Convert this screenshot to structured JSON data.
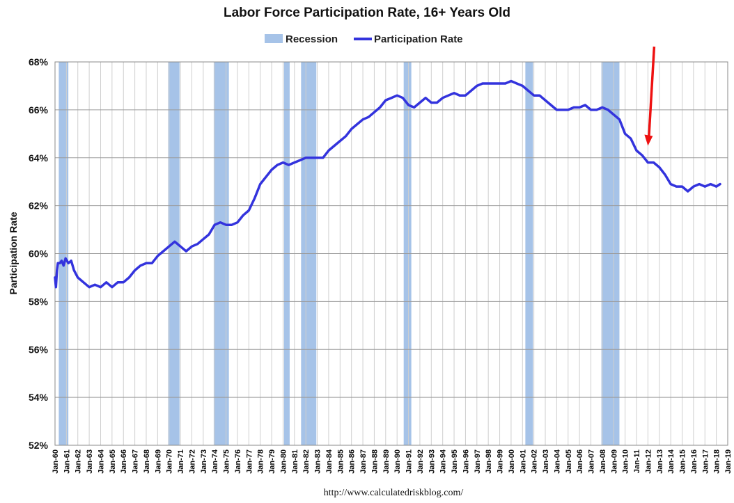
{
  "chart_data": {
    "type": "line",
    "title": "Labor Force Participation Rate, 16+ Years Old",
    "ylabel": "Participation Rate",
    "xlabel": "",
    "source": "http://www.calculatedriskblog.com/",
    "ylim": [
      52,
      68
    ],
    "xlim": [
      1960.0,
      2019.0
    ],
    "grid": true,
    "legend_position": "top-center",
    "y_ticks": [
      "52%",
      "54%",
      "56%",
      "58%",
      "60%",
      "62%",
      "64%",
      "66%",
      "68%"
    ],
    "y_tick_values": [
      52,
      54,
      56,
      58,
      60,
      62,
      64,
      66,
      68
    ],
    "x_ticks": [
      "Jan-60",
      "Jan-61",
      "Jan-62",
      "Jan-63",
      "Jan-64",
      "Jan-65",
      "Jan-66",
      "Jan-67",
      "Jan-68",
      "Jan-69",
      "Jan-70",
      "Jan-71",
      "Jan-72",
      "Jan-73",
      "Jan-74",
      "Jan-75",
      "Jan-76",
      "Jan-77",
      "Jan-78",
      "Jan-79",
      "Jan-80",
      "Jan-81",
      "Jan-82",
      "Jan-83",
      "Jan-84",
      "Jan-85",
      "Jan-86",
      "Jan-87",
      "Jan-88",
      "Jan-89",
      "Jan-90",
      "Jan-91",
      "Jan-92",
      "Jan-93",
      "Jan-94",
      "Jan-95",
      "Jan-96",
      "Jan-97",
      "Jan-98",
      "Jan-99",
      "Jan-00",
      "Jan-01",
      "Jan-02",
      "Jan-03",
      "Jan-04",
      "Jan-05",
      "Jan-06",
      "Jan-07",
      "Jan-08",
      "Jan-09",
      "Jan-10",
      "Jan-11",
      "Jan-12",
      "Jan-13",
      "Jan-14",
      "Jan-15",
      "Jan-16",
      "Jan-17",
      "Jan-18",
      "Jan-19"
    ],
    "x_tick_values": [
      1960,
      1961,
      1962,
      1963,
      1964,
      1965,
      1966,
      1967,
      1968,
      1969,
      1970,
      1971,
      1972,
      1973,
      1974,
      1975,
      1976,
      1977,
      1978,
      1979,
      1980,
      1981,
      1982,
      1983,
      1984,
      1985,
      1986,
      1987,
      1988,
      1989,
      1990,
      1991,
      1992,
      1993,
      1994,
      1995,
      1996,
      1997,
      1998,
      1999,
      2000,
      2001,
      2002,
      2003,
      2004,
      2005,
      2006,
      2007,
      2008,
      2009,
      2010,
      2011,
      2012,
      2013,
      2014,
      2015,
      2016,
      2017,
      2018,
      2019
    ],
    "recessions": [
      {
        "start": 1960.33,
        "end": 1961.17
      },
      {
        "start": 1969.92,
        "end": 1970.92
      },
      {
        "start": 1973.92,
        "end": 1975.25
      },
      {
        "start": 1980.08,
        "end": 1980.58
      },
      {
        "start": 1981.58,
        "end": 1982.92
      },
      {
        "start": 1990.58,
        "end": 1991.25
      },
      {
        "start": 2001.25,
        "end": 2001.92
      },
      {
        "start": 2007.92,
        "end": 2009.5
      }
    ],
    "series": [
      {
        "name": "Participation Rate",
        "color": "#3333dd",
        "points": [
          [
            1960.0,
            59.0
          ],
          [
            1960.08,
            58.6
          ],
          [
            1960.17,
            59.3
          ],
          [
            1960.25,
            59.6
          ],
          [
            1960.42,
            59.6
          ],
          [
            1960.58,
            59.7
          ],
          [
            1960.75,
            59.5
          ],
          [
            1960.92,
            59.8
          ],
          [
            1961.17,
            59.6
          ],
          [
            1961.42,
            59.7
          ],
          [
            1961.67,
            59.3
          ],
          [
            1962.0,
            59.0
          ],
          [
            1962.5,
            58.8
          ],
          [
            1963.0,
            58.6
          ],
          [
            1963.5,
            58.7
          ],
          [
            1964.0,
            58.6
          ],
          [
            1964.5,
            58.8
          ],
          [
            1965.0,
            58.6
          ],
          [
            1965.5,
            58.8
          ],
          [
            1966.0,
            58.8
          ],
          [
            1966.5,
            59.0
          ],
          [
            1967.0,
            59.3
          ],
          [
            1967.5,
            59.5
          ],
          [
            1968.0,
            59.6
          ],
          [
            1968.5,
            59.6
          ],
          [
            1969.0,
            59.9
          ],
          [
            1969.5,
            60.1
          ],
          [
            1970.0,
            60.3
          ],
          [
            1970.5,
            60.5
          ],
          [
            1971.0,
            60.3
          ],
          [
            1971.5,
            60.1
          ],
          [
            1972.0,
            60.3
          ],
          [
            1972.5,
            60.4
          ],
          [
            1973.0,
            60.6
          ],
          [
            1973.5,
            60.8
          ],
          [
            1974.0,
            61.2
          ],
          [
            1974.5,
            61.3
          ],
          [
            1975.0,
            61.2
          ],
          [
            1975.5,
            61.2
          ],
          [
            1976.0,
            61.3
          ],
          [
            1976.5,
            61.6
          ],
          [
            1977.0,
            61.8
          ],
          [
            1977.5,
            62.3
          ],
          [
            1978.0,
            62.9
          ],
          [
            1978.5,
            63.2
          ],
          [
            1979.0,
            63.5
          ],
          [
            1979.5,
            63.7
          ],
          [
            1980.0,
            63.8
          ],
          [
            1980.5,
            63.7
          ],
          [
            1981.0,
            63.8
          ],
          [
            1981.5,
            63.9
          ],
          [
            1982.0,
            64.0
          ],
          [
            1982.5,
            64.0
          ],
          [
            1983.0,
            64.0
          ],
          [
            1983.5,
            64.0
          ],
          [
            1984.0,
            64.3
          ],
          [
            1984.5,
            64.5
          ],
          [
            1985.0,
            64.7
          ],
          [
            1985.5,
            64.9
          ],
          [
            1986.0,
            65.2
          ],
          [
            1986.5,
            65.4
          ],
          [
            1987.0,
            65.6
          ],
          [
            1987.5,
            65.7
          ],
          [
            1988.0,
            65.9
          ],
          [
            1988.5,
            66.1
          ],
          [
            1989.0,
            66.4
          ],
          [
            1989.5,
            66.5
          ],
          [
            1990.0,
            66.6
          ],
          [
            1990.5,
            66.5
          ],
          [
            1991.0,
            66.2
          ],
          [
            1991.5,
            66.1
          ],
          [
            1992.0,
            66.3
          ],
          [
            1992.5,
            66.5
          ],
          [
            1993.0,
            66.3
          ],
          [
            1993.5,
            66.3
          ],
          [
            1994.0,
            66.5
          ],
          [
            1994.5,
            66.6
          ],
          [
            1995.0,
            66.7
          ],
          [
            1995.5,
            66.6
          ],
          [
            1996.0,
            66.6
          ],
          [
            1996.5,
            66.8
          ],
          [
            1997.0,
            67.0
          ],
          [
            1997.5,
            67.1
          ],
          [
            1998.0,
            67.1
          ],
          [
            1998.5,
            67.1
          ],
          [
            1999.0,
            67.1
          ],
          [
            1999.5,
            67.1
          ],
          [
            2000.0,
            67.2
          ],
          [
            2000.5,
            67.1
          ],
          [
            2001.0,
            67.0
          ],
          [
            2001.5,
            66.8
          ],
          [
            2002.0,
            66.6
          ],
          [
            2002.5,
            66.6
          ],
          [
            2003.0,
            66.4
          ],
          [
            2003.5,
            66.2
          ],
          [
            2004.0,
            66.0
          ],
          [
            2004.5,
            66.0
          ],
          [
            2005.0,
            66.0
          ],
          [
            2005.5,
            66.1
          ],
          [
            2006.0,
            66.1
          ],
          [
            2006.5,
            66.2
          ],
          [
            2007.0,
            66.0
          ],
          [
            2007.5,
            66.0
          ],
          [
            2008.0,
            66.1
          ],
          [
            2008.5,
            66.0
          ],
          [
            2009.0,
            65.8
          ],
          [
            2009.5,
            65.6
          ],
          [
            2010.0,
            65.0
          ],
          [
            2010.5,
            64.8
          ],
          [
            2011.0,
            64.3
          ],
          [
            2011.5,
            64.1
          ],
          [
            2012.0,
            63.8
          ],
          [
            2012.5,
            63.8
          ],
          [
            2013.0,
            63.6
          ],
          [
            2013.5,
            63.3
          ],
          [
            2014.0,
            62.9
          ],
          [
            2014.5,
            62.8
          ],
          [
            2015.0,
            62.8
          ],
          [
            2015.5,
            62.6
          ],
          [
            2016.0,
            62.8
          ],
          [
            2016.5,
            62.9
          ],
          [
            2017.0,
            62.8
          ],
          [
            2017.5,
            62.9
          ],
          [
            2018.0,
            62.8
          ],
          [
            2018.33,
            62.9
          ]
        ]
      }
    ],
    "legend": [
      {
        "label": "Recession",
        "color": "#a6c3e8",
        "kind": "box"
      },
      {
        "label": "Participation Rate",
        "color": "#3333dd",
        "kind": "line"
      }
    ],
    "annotation": {
      "kind": "arrow",
      "color": "#ee1111",
      "tip": [
        2012.0,
        64.5
      ]
    }
  }
}
